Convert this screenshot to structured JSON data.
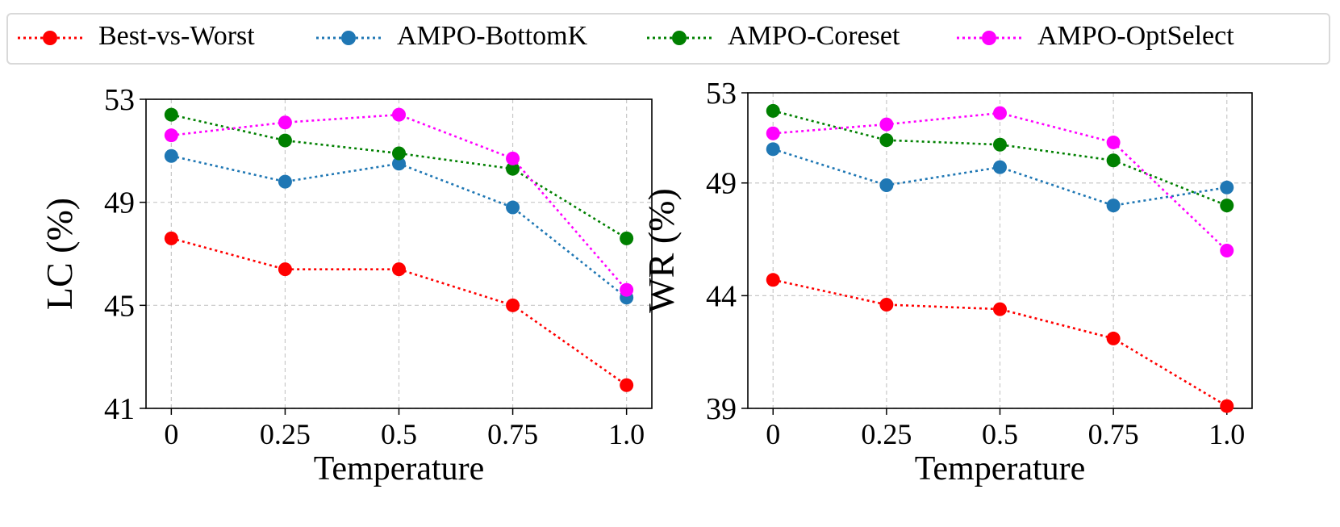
{
  "legend": {
    "entries": [
      {
        "label": "Best-vs-Worst",
        "color": "#ff0000"
      },
      {
        "label": "AMPO-BottomK",
        "color": "#1f77b4"
      },
      {
        "label": "AMPO-Coreset",
        "color": "#008000"
      },
      {
        "label": "AMPO-OptSelect",
        "color": "#ff00ff"
      }
    ]
  },
  "chart_data": [
    {
      "type": "line",
      "title": "",
      "xlabel": "Temperature",
      "ylabel": "LC (%)",
      "x": [
        0,
        0.25,
        0.5,
        0.75,
        1.0
      ],
      "xticks": [
        "0",
        "0.25",
        "0.5",
        "0.75",
        "1.0"
      ],
      "yticks": [
        "41",
        "45",
        "49",
        "53"
      ],
      "ylim": [
        41,
        53
      ],
      "grid": true,
      "series": [
        {
          "name": "Best-vs-Worst",
          "color": "#ff0000",
          "values": [
            47.6,
            46.4,
            46.4,
            45.0,
            41.9
          ]
        },
        {
          "name": "AMPO-BottomK",
          "color": "#1f77b4",
          "values": [
            50.8,
            49.8,
            50.5,
            48.8,
            45.3
          ]
        },
        {
          "name": "AMPO-Coreset",
          "color": "#008000",
          "values": [
            52.4,
            51.4,
            50.9,
            50.3,
            47.6
          ]
        },
        {
          "name": "AMPO-OptSelect",
          "color": "#ff00ff",
          "values": [
            51.6,
            52.1,
            52.4,
            50.7,
            45.6
          ]
        }
      ]
    },
    {
      "type": "line",
      "title": "",
      "xlabel": "Temperature",
      "ylabel": "WR (%)",
      "x": [
        0,
        0.25,
        0.5,
        0.75,
        1.0
      ],
      "xticks": [
        "0",
        "0.25",
        "0.5",
        "0.75",
        "1.0"
      ],
      "yticks": [
        "39",
        "44",
        "49",
        "53"
      ],
      "ylim": [
        39,
        53
      ],
      "grid": true,
      "series": [
        {
          "name": "Best-vs-Worst",
          "color": "#ff0000",
          "values": [
            44.7,
            43.6,
            43.4,
            42.1,
            39.1
          ]
        },
        {
          "name": "AMPO-BottomK",
          "color": "#1f77b4",
          "values": [
            50.5,
            48.9,
            49.7,
            48.0,
            48.8
          ]
        },
        {
          "name": "AMPO-Coreset",
          "color": "#008000",
          "values": [
            52.2,
            50.9,
            50.7,
            50.0,
            48.0
          ]
        },
        {
          "name": "AMPO-OptSelect",
          "color": "#ff00ff",
          "values": [
            51.2,
            51.6,
            52.1,
            50.8,
            46.0
          ]
        }
      ]
    }
  ]
}
